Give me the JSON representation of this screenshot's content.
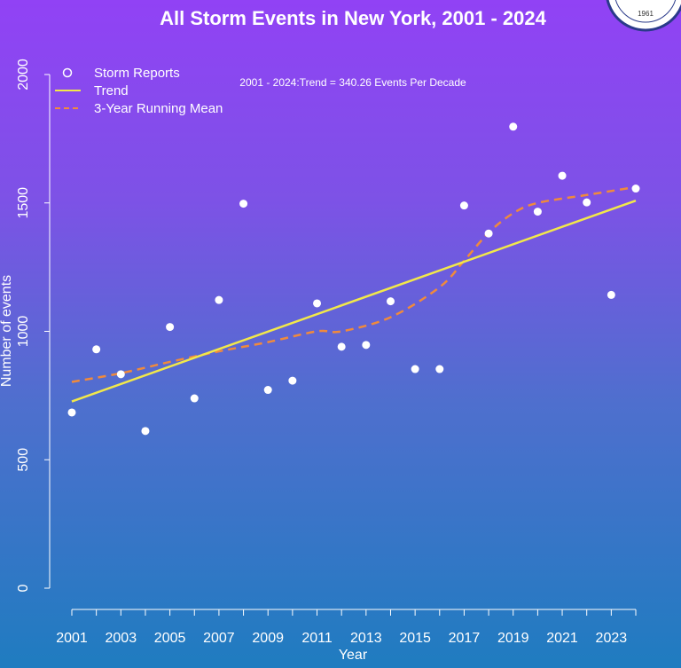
{
  "colors": {
    "points": "#ffffff",
    "trend": "#f2e84a",
    "running_mean": "#f08a3c",
    "axis": "#ffffff",
    "text": "#ffffff"
  },
  "seal": {
    "text": "1961"
  },
  "chart_data": {
    "type": "scatter",
    "title": "All Storm Events in New York, 2001 - 2024",
    "xlabel": "Year",
    "ylabel": "Number of events",
    "xlim": [
      2001,
      2024
    ],
    "ylim": [
      0,
      2000
    ],
    "x_ticks": [
      2001,
      2003,
      2005,
      2007,
      2009,
      2011,
      2013,
      2015,
      2017,
      2019,
      2021,
      2023
    ],
    "y_ticks": [
      0,
      500,
      1000,
      1500,
      2000
    ],
    "grid": false,
    "legend_position": "top-left",
    "legend": [
      "Storm Reports",
      "Trend",
      "3-Year Running Mean"
    ],
    "annotation": "2001 - 2024:Trend = 340.26 Events Per Decade",
    "series": [
      {
        "name": "Storm Reports",
        "kind": "points",
        "x": [
          2001,
          2002,
          2003,
          2004,
          2005,
          2006,
          2007,
          2008,
          2009,
          2010,
          2011,
          2012,
          2013,
          2014,
          2015,
          2016,
          2017,
          2018,
          2019,
          2020,
          2021,
          2022,
          2023,
          2024
        ],
        "y": [
          684,
          930,
          833,
          612,
          1017,
          739,
          1122,
          1497,
          772,
          808,
          1109,
          940,
          947,
          1117,
          853,
          853,
          1490,
          1381,
          1797,
          1466,
          1606,
          1502,
          1142,
          1556
        ]
      },
      {
        "name": "Trend",
        "kind": "line",
        "x": [
          2001,
          2024
        ],
        "y": [
          727,
          1509
        ]
      },
      {
        "name": "3-Year Running Mean",
        "kind": "dashed",
        "x": [
          2001,
          2003,
          2005,
          2007,
          2009,
          2011,
          2012,
          2014,
          2016,
          2017,
          2018,
          2019,
          2020,
          2022,
          2024
        ],
        "y": [
          803,
          837,
          881,
          922,
          958,
          1000,
          1000,
          1055,
          1172,
          1275,
          1384,
          1460,
          1500,
          1531,
          1562
        ]
      }
    ]
  }
}
